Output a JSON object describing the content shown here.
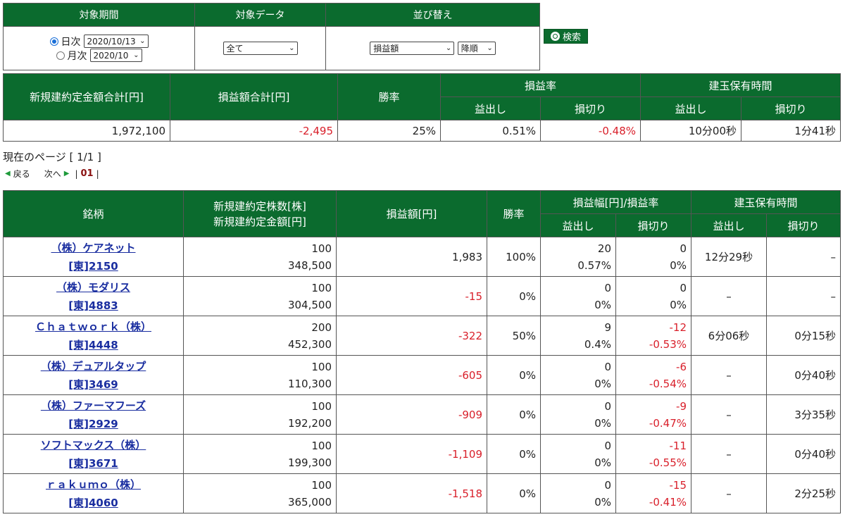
{
  "filter": {
    "headers": [
      "対象期間",
      "対象データ",
      "並び替え"
    ],
    "daily_label": "日次",
    "daily_value": "2020/10/13",
    "monthly_label": "月次",
    "monthly_value": "2020/10",
    "data_value": "全て",
    "sort_value": "損益額",
    "order_value": "降順"
  },
  "search_label": "検索",
  "summary": {
    "headers": {
      "total_amount": "新規建約定金額合計[円]",
      "total_pl": "損益額合計[円]",
      "win_rate": "勝率",
      "pl_rate": "損益率",
      "holding": "建玉保有時間",
      "profit": "益出し",
      "loss": "損切り"
    },
    "values": {
      "total_amount": "1,972,100",
      "total_pl": "-2,495",
      "win_rate": "25%",
      "pl_rate_profit": "0.51%",
      "pl_rate_loss": "-0.48%",
      "holding_profit": "10分00秒",
      "holding_loss": "1分41秒"
    }
  },
  "pager": {
    "info": "現在のページ [ 1/1 ]",
    "prev": "戻る",
    "next": "次へ",
    "page": "01"
  },
  "main": {
    "headers": {
      "name": "銘柄",
      "shares": "新規建約定株数[株]",
      "amount": "新規建約定金額[円]",
      "pl": "損益額[円]",
      "win_rate": "勝率",
      "range_rate": "損益幅[円]/損益率",
      "holding": "建玉保有時間",
      "profit": "益出し",
      "loss": "損切り"
    },
    "rows": [
      {
        "name": "（株）ケアネット",
        "code": "[東]2150",
        "shares": "100",
        "amount": "348,500",
        "pl": "1,983",
        "win": "100%",
        "p_range": "20",
        "p_rate": "0.57%",
        "l_range": "0",
        "l_rate": "0%",
        "h_profit": "12分29秒",
        "h_loss": "–"
      },
      {
        "name": "（株）モダリス",
        "code": "[東]4883",
        "shares": "100",
        "amount": "304,500",
        "pl": "-15",
        "win": "0%",
        "p_range": "0",
        "p_rate": "0%",
        "l_range": "0",
        "l_rate": "0%",
        "h_profit": "–",
        "h_loss": "–"
      },
      {
        "name": "Ｃｈａｔｗｏｒｋ（株）",
        "code": "[東]4448",
        "shares": "200",
        "amount": "452,300",
        "pl": "-322",
        "win": "50%",
        "p_range": "9",
        "p_rate": "0.4%",
        "l_range": "-12",
        "l_rate": "-0.53%",
        "h_profit": "6分06秒",
        "h_loss": "0分15秒"
      },
      {
        "name": "（株）デュアルタップ",
        "code": "[東]3469",
        "shares": "100",
        "amount": "110,300",
        "pl": "-605",
        "win": "0%",
        "p_range": "0",
        "p_rate": "0%",
        "l_range": "-6",
        "l_rate": "-0.54%",
        "h_profit": "–",
        "h_loss": "0分40秒"
      },
      {
        "name": "（株）ファーマフーズ",
        "code": "[東]2929",
        "shares": "100",
        "amount": "192,200",
        "pl": "-909",
        "win": "0%",
        "p_range": "0",
        "p_rate": "0%",
        "l_range": "-9",
        "l_rate": "-0.47%",
        "h_profit": "–",
        "h_loss": "3分35秒"
      },
      {
        "name": "ソフトマックス（株）",
        "code": "[東]3671",
        "shares": "100",
        "amount": "199,300",
        "pl": "-1,109",
        "win": "0%",
        "p_range": "0",
        "p_rate": "0%",
        "l_range": "-11",
        "l_rate": "-0.55%",
        "h_profit": "–",
        "h_loss": "0分40秒"
      },
      {
        "name": "ｒａｋｕｍｏ（株）",
        "code": "[東]4060",
        "shares": "100",
        "amount": "365,000",
        "pl": "-1,518",
        "win": "0%",
        "p_range": "0",
        "p_rate": "0%",
        "l_range": "-15",
        "l_rate": "-0.41%",
        "h_profit": "–",
        "h_loss": "2分25秒"
      }
    ]
  }
}
